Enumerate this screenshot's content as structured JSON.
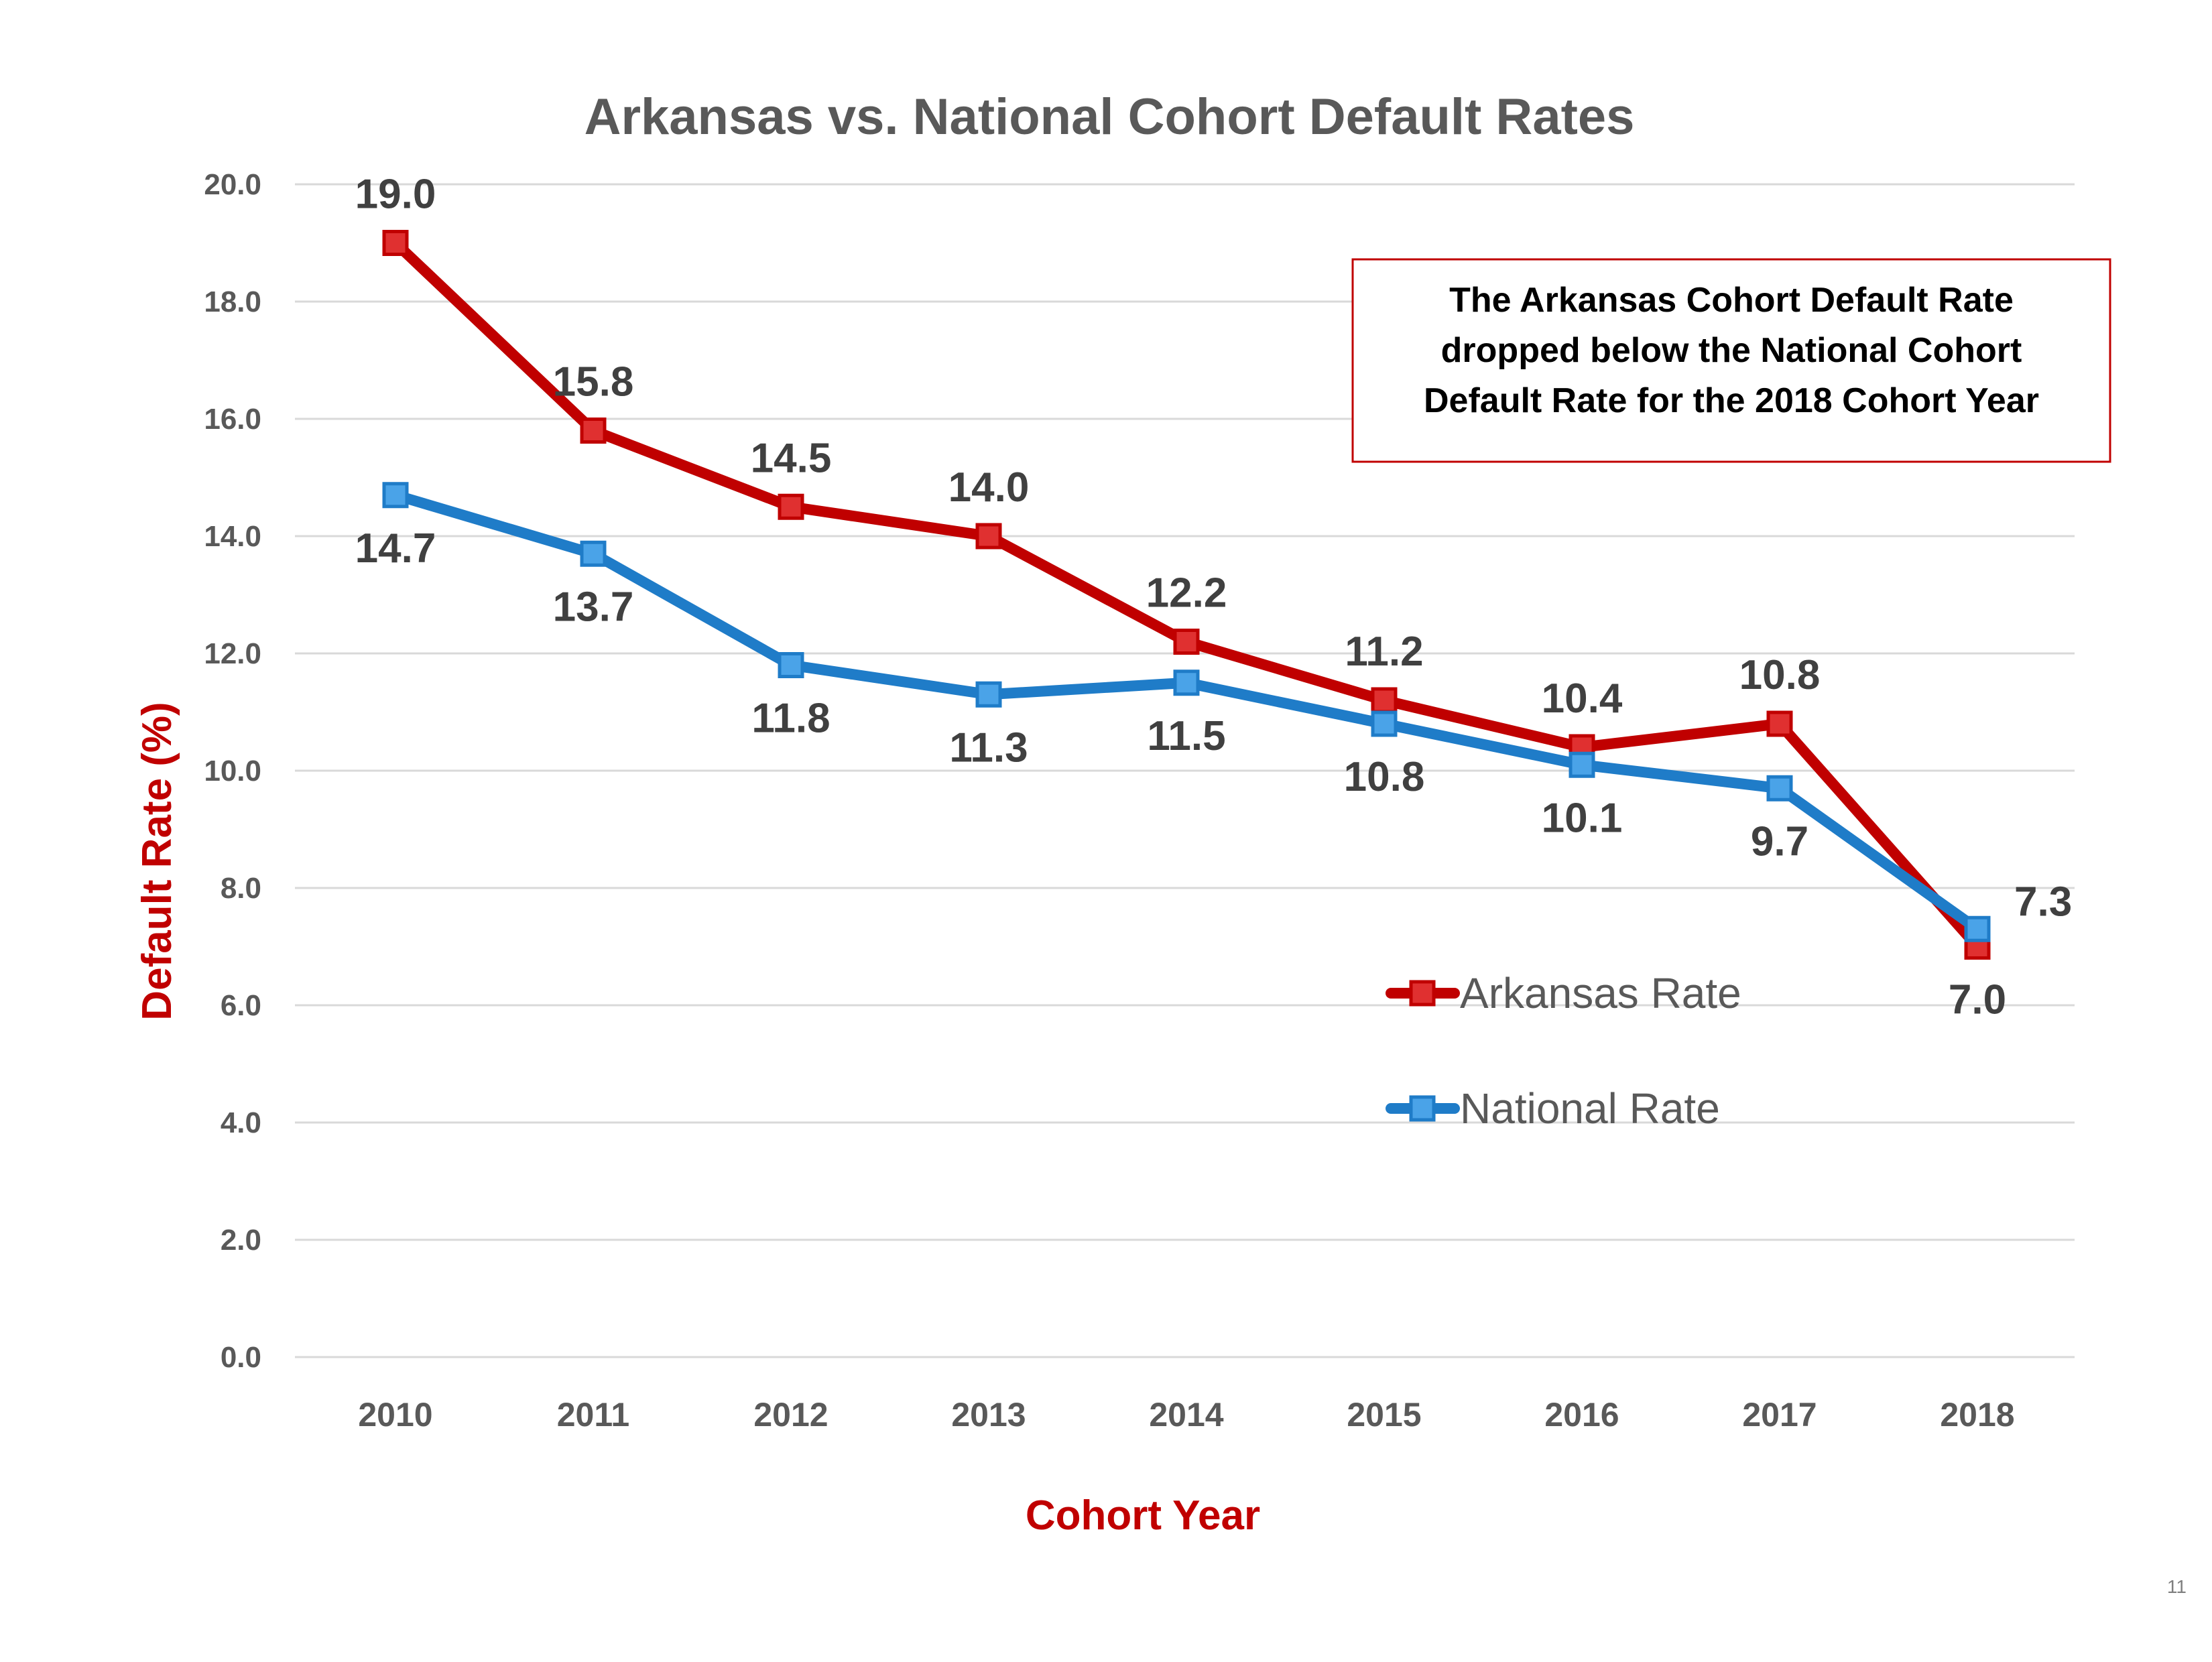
{
  "page_number": "11",
  "annotation": {
    "lines": [
      "The Arkansas Cohort Default Rate",
      "dropped below the National Cohort",
      "Default Rate for the 2018 Cohort Year"
    ]
  },
  "chart_data": {
    "type": "line",
    "title": "Arkansas vs. National Cohort Default Rates",
    "xlabel": "Cohort Year",
    "ylabel": "Default Rate (%)",
    "ylim": [
      0,
      20
    ],
    "y_ticks": [
      "0.0",
      "2.0",
      "4.0",
      "6.0",
      "8.0",
      "10.0",
      "12.0",
      "14.0",
      "16.0",
      "18.0",
      "20.0"
    ],
    "categories": [
      "2010",
      "2011",
      "2012",
      "2013",
      "2014",
      "2015",
      "2016",
      "2017",
      "2018"
    ],
    "grid": true,
    "legend_position": "right",
    "series": [
      {
        "name": "Arkansas Rate",
        "color": "#c00000",
        "marker_fill": "#e03030",
        "values": [
          19.0,
          15.8,
          14.5,
          14.0,
          12.2,
          11.2,
          10.4,
          10.8,
          7.0
        ],
        "labels": [
          "19.0",
          "15.8",
          "14.5",
          "14.0",
          "12.2",
          "11.2",
          "10.4",
          "10.8",
          "7.0"
        ],
        "label_side": [
          "above",
          "above",
          "above",
          "above",
          "above",
          "above",
          "above",
          "above",
          "below"
        ]
      },
      {
        "name": "National Rate",
        "color": "#1f7cc8",
        "marker_fill": "#4aa3e8",
        "values": [
          14.7,
          13.7,
          11.8,
          11.3,
          11.5,
          10.8,
          10.1,
          9.7,
          7.3
        ],
        "labels": [
          "14.7",
          "13.7",
          "11.8",
          "11.3",
          "11.5",
          "10.8",
          "10.1",
          "9.7",
          "7.3"
        ],
        "label_side": [
          "below",
          "below",
          "below",
          "below",
          "below",
          "below",
          "below",
          "below",
          "right"
        ]
      }
    ],
    "gridline_color": "#d9d9d9",
    "accent_color": "#c00000"
  }
}
